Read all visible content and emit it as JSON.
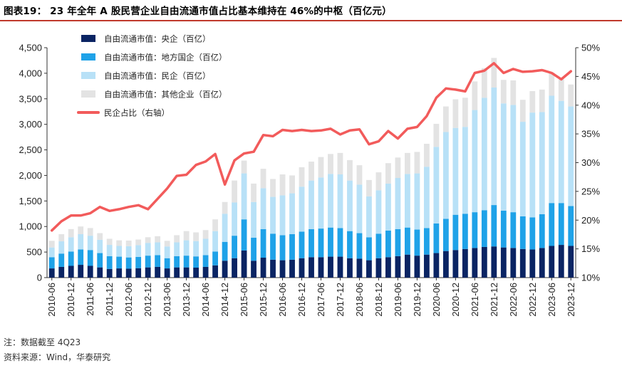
{
  "title": "图表19：  23 年全年 A 股民营企业自由流通市值占比基本维持在 46%的中枢（百亿元）",
  "note": "注：数据截至 4Q23",
  "source": "资料来源：Wind，华泰研究",
  "chart_data": {
    "type": "bar",
    "stacked": true,
    "categories": [
      "2010-06",
      "2010-09",
      "2010-12",
      "2011-03",
      "2011-06",
      "2011-09",
      "2011-12",
      "2012-03",
      "2012-06",
      "2012-09",
      "2012-12",
      "2013-03",
      "2013-06",
      "2013-09",
      "2013-12",
      "2014-03",
      "2014-06",
      "2014-09",
      "2014-12",
      "2015-03",
      "2015-06",
      "2015-09",
      "2015-12",
      "2016-03",
      "2016-06",
      "2016-09",
      "2016-12",
      "2017-03",
      "2017-06",
      "2017-09",
      "2017-12",
      "2018-03",
      "2018-06",
      "2018-09",
      "2018-12",
      "2019-03",
      "2019-06",
      "2019-09",
      "2019-12",
      "2020-03",
      "2020-06",
      "2020-09",
      "2020-12",
      "2021-03",
      "2021-06",
      "2021-09",
      "2021-12",
      "2022-03",
      "2022-06",
      "2022-09",
      "2022-12",
      "2023-03",
      "2023-06",
      "2023-09",
      "2023-12"
    ],
    "x_tick_labels": [
      "2010-06",
      "2010-12",
      "2011-06",
      "2011-12",
      "2012-06",
      "2012-12",
      "2013-06",
      "2013-12",
      "2014-06",
      "2014-12",
      "2015-06",
      "2015-12",
      "2016-06",
      "2016-12",
      "2017-06",
      "2017-12",
      "2018-06",
      "2018-12",
      "2019-06",
      "2019-12",
      "2020-06",
      "2020-12",
      "2021-06",
      "2021-12",
      "2022-06",
      "2022-12",
      "2023-06",
      "2023-12"
    ],
    "y_left": {
      "lim": [
        0,
        4500
      ],
      "ticks": [
        "0",
        "500",
        "1,000",
        "1,500",
        "2,000",
        "2,500",
        "3,000",
        "3,500",
        "4,000",
        "4,500"
      ]
    },
    "y_right": {
      "lim": [
        10,
        50
      ],
      "ticks": [
        "10%",
        "15%",
        "20%",
        "25%",
        "30%",
        "35%",
        "40%",
        "45%",
        "50%"
      ]
    },
    "legend_position": "top-left",
    "series": [
      {
        "name": "自由流通市值：央企（百亿）",
        "color": "#0a2463",
        "axis": "left",
        "values": [
          180,
          210,
          230,
          250,
          230,
          200,
          170,
          180,
          175,
          185,
          200,
          210,
          180,
          200,
          200,
          195,
          210,
          240,
          330,
          380,
          530,
          330,
          390,
          350,
          340,
          350,
          380,
          400,
          400,
          410,
          410,
          380,
          370,
          340,
          380,
          400,
          420,
          450,
          430,
          450,
          480,
          520,
          540,
          560,
          580,
          600,
          610,
          590,
          580,
          560,
          550,
          580,
          620,
          640,
          620
        ]
      },
      {
        "name": "自由流通市值：地方国企（百亿）",
        "color": "#1fa2e8",
        "axis": "left",
        "values": [
          220,
          260,
          280,
          300,
          310,
          280,
          250,
          230,
          220,
          220,
          230,
          230,
          200,
          220,
          230,
          220,
          230,
          270,
          370,
          440,
          610,
          450,
          560,
          510,
          490,
          500,
          520,
          550,
          560,
          570,
          560,
          530,
          500,
          450,
          480,
          520,
          530,
          530,
          510,
          520,
          580,
          630,
          690,
          690,
          700,
          720,
          810,
          720,
          700,
          640,
          630,
          660,
          840,
          820,
          780
        ]
      },
      {
        "name": "自由流通市值：民企（百亿）",
        "color": "#b8e1f7",
        "axis": "left",
        "values": [
          190,
          240,
          280,
          300,
          280,
          260,
          220,
          210,
          220,
          230,
          250,
          250,
          230,
          270,
          300,
          300,
          320,
          400,
          550,
          650,
          900,
          700,
          800,
          720,
          780,
          800,
          880,
          950,
          1000,
          1050,
          1050,
          990,
          950,
          800,
          850,
          920,
          1000,
          1050,
          1100,
          1200,
          1500,
          1700,
          1700,
          1700,
          2000,
          2200,
          2300,
          2100,
          2100,
          1850,
          2050,
          2000,
          2100,
          2000,
          1950
        ]
      },
      {
        "name": "自由流通市值：其他企业（百亿）",
        "color": "#e3e3e3",
        "axis": "left",
        "values": [
          130,
          140,
          160,
          150,
          150,
          130,
          120,
          110,
          110,
          110,
          110,
          120,
          110,
          140,
          180,
          170,
          170,
          230,
          230,
          430,
          250,
          360,
          380,
          350,
          410,
          350,
          380,
          370,
          400,
          390,
          420,
          400,
          380,
          320,
          350,
          400,
          400,
          410,
          420,
          450,
          450,
          500,
          560,
          570,
          560,
          580,
          580,
          460,
          480,
          430,
          420,
          440,
          450,
          420,
          430
        ]
      },
      {
        "name": "民企占比（右轴）",
        "color": "#f25b5b",
        "axis": "right",
        "kind": "line",
        "values": [
          18.2,
          19.8,
          20.8,
          20.8,
          21.2,
          22.3,
          21.6,
          21.9,
          22.3,
          22.6,
          21.9,
          23.7,
          25.5,
          27.7,
          27.9,
          29.6,
          30.2,
          31.5,
          26.2,
          30.4,
          31.6,
          31.9,
          34.8,
          34.6,
          35.7,
          35.5,
          35.7,
          35.5,
          35.6,
          35.9,
          34.9,
          35.6,
          35.8,
          33.2,
          33.7,
          35.5,
          34.2,
          35.9,
          36.2,
          38.1,
          41.3,
          42.9,
          42.7,
          42.4,
          45.6,
          46.0,
          47.3,
          45.6,
          46.3,
          45.8,
          45.9,
          46.1,
          45.6,
          44.5,
          45.9
        ]
      }
    ]
  }
}
